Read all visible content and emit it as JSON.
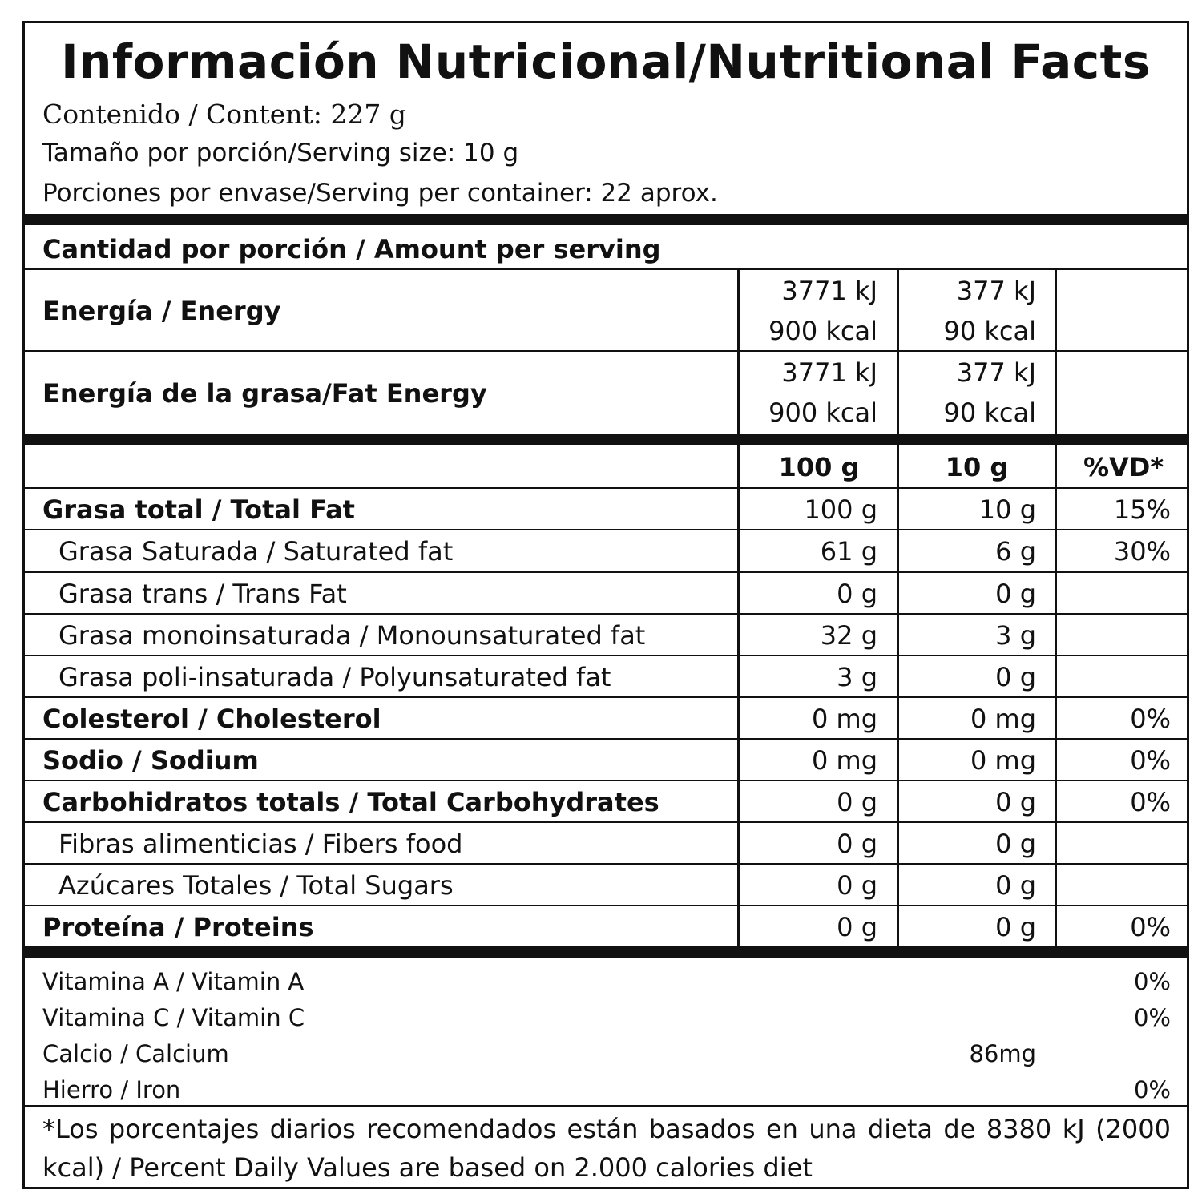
{
  "title": "Información Nutricional/Nutritional Facts",
  "content": "Contenido / Content: 227 g",
  "serving_size": "Tamaño por porción/Serving size: 10 g",
  "servings_per_container": "Porciones por envase/Serving per container: 22 aprox.",
  "amount_per_serving": "Cantidad por porción / Amount per serving",
  "energy": {
    "label": "Energía / Energy",
    "per100_kj": "3771 kJ",
    "per100_kcal": "900 kcal",
    "perServ_kj": "377 kJ",
    "perServ_kcal": "90 kcal"
  },
  "fat_energy": {
    "label": "Energía de la grasa/Fat Energy",
    "per100_kj": "3771 kJ",
    "per100_kcal": "900 kcal",
    "perServ_kj": "377 kJ",
    "perServ_kcal": "90 kcal"
  },
  "columns": {
    "c1": "100 g",
    "c2": "10 g",
    "c3": "%VD*"
  },
  "rows": [
    {
      "label": "Grasa total / Total Fat",
      "v100": "100 g",
      "vserv": "10 g",
      "dv": "15%"
    },
    {
      "label": "Grasa Saturada / Saturated fat",
      "v100": "61 g",
      "vserv": "6 g",
      "dv": "30%"
    },
    {
      "label": "Grasa trans / Trans Fat",
      "v100": "0 g",
      "vserv": "0 g",
      "dv": ""
    },
    {
      "label": "Grasa monoinsaturada / Monounsaturated fat",
      "v100": "32 g",
      "vserv": "3 g",
      "dv": ""
    },
    {
      "label": "Grasa poli-insaturada / Polyunsaturated fat",
      "v100": "3 g",
      "vserv": "0 g",
      "dv": ""
    },
    {
      "label": "Colesterol / Cholesterol",
      "v100": "0 mg",
      "vserv": "0 mg",
      "dv": "0%"
    },
    {
      "label": "Sodio / Sodium",
      "v100": "0 mg",
      "vserv": "0 mg",
      "dv": "0%"
    },
    {
      "label": "Carbohidratos totals / Total Carbohydrates",
      "v100": "0 g",
      "vserv": "0 g",
      "dv": "0%"
    },
    {
      "label": "Fibras alimenticias / Fibers food",
      "v100": "0 g",
      "vserv": "0 g",
      "dv": ""
    },
    {
      "label": "Azúcares Totales / Total Sugars",
      "v100": "0 g",
      "vserv": "0 g",
      "dv": ""
    },
    {
      "label": "Proteína / Proteins",
      "v100": "0 g",
      "vserv": "0 g",
      "dv": "0%"
    }
  ],
  "vitamins": [
    {
      "label": "Vitamina A / Vitamin A",
      "amount": "",
      "dv": "0%"
    },
    {
      "label": "Vitamina C / Vitamin C",
      "amount": "",
      "dv": "0%"
    },
    {
      "label": "Calcio / Calcium",
      "amount": "86mg",
      "dv": ""
    },
    {
      "label": "Hierro / Iron",
      "amount": "",
      "dv": "0%"
    }
  ],
  "footnote": "*Los porcentajes diarios recomendados están basados en una dieta de 8380 kJ (2000 kcal) / Percent Daily Values are based on 2.000 calories diet"
}
